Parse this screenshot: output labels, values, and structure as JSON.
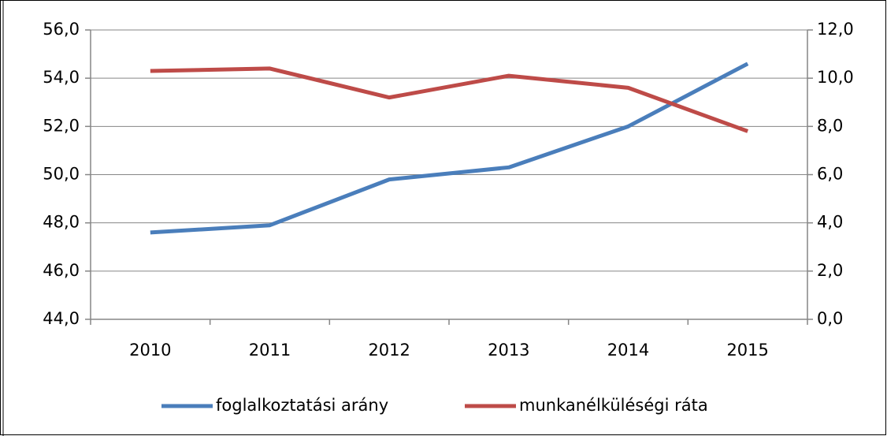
{
  "chart_data": {
    "type": "line",
    "categories": [
      "2010",
      "2011",
      "2012",
      "2013",
      "2014",
      "2015"
    ],
    "series": [
      {
        "name": "foglalkoztatási arány",
        "color": "#4a7ebb",
        "values": [
          47.6,
          47.9,
          49.8,
          50.3,
          52.0,
          54.6
        ]
      },
      {
        "name": "munkanélküléségi ráta",
        "color": "#be4b48",
        "axis": "y2",
        "values": [
          10.3,
          10.4,
          9.2,
          10.1,
          9.6,
          7.8
        ]
      }
    ],
    "ylim": [
      44,
      56
    ],
    "yticks": [
      {
        "value": 44,
        "label": "44,0"
      },
      {
        "value": 46,
        "label": "46,0"
      },
      {
        "value": 48,
        "label": "48,0"
      },
      {
        "value": 50,
        "label": "50,0"
      },
      {
        "value": 52,
        "label": "52,0"
      },
      {
        "value": 54,
        "label": "54,0"
      },
      {
        "value": 56,
        "label": "56,0"
      }
    ],
    "y2lim": [
      0,
      12
    ],
    "y2ticks": [
      {
        "value": 0,
        "label": "0,0"
      },
      {
        "value": 2,
        "label": "2,0"
      },
      {
        "value": 4,
        "label": "4,0"
      },
      {
        "value": 6,
        "label": "6,0"
      },
      {
        "value": 8,
        "label": "8,0"
      },
      {
        "value": 10,
        "label": "10,0"
      },
      {
        "value": 12,
        "label": "12,0"
      }
    ],
    "grid": true,
    "legend": "bottom"
  }
}
